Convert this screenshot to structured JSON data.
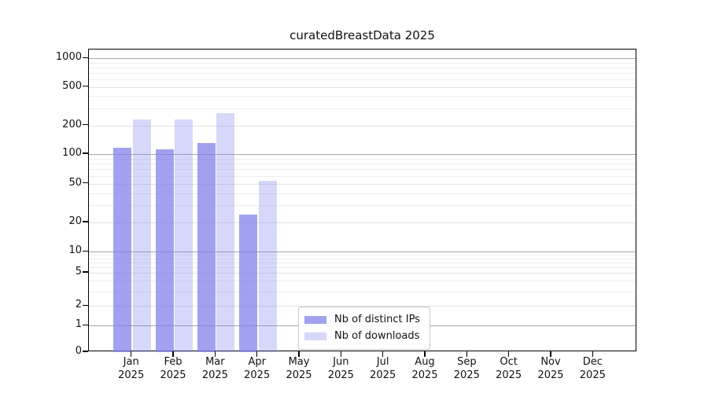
{
  "chart_data": {
    "type": "bar",
    "title": "curatedBreastData 2025",
    "categories": [
      "Jan 2025",
      "Feb 2025",
      "Mar 2025",
      "Apr 2025",
      "May 2025",
      "Jun 2025",
      "Jul 2025",
      "Aug 2025",
      "Sep 2025",
      "Oct 2025",
      "Nov 2025",
      "Dec 2025"
    ],
    "x_tick_lines": {
      "months": [
        "Jan",
        "Feb",
        "Mar",
        "Apr",
        "May",
        "Jun",
        "Jul",
        "Aug",
        "Sep",
        "Oct",
        "Nov",
        "Dec"
      ],
      "year": "2025"
    },
    "series": [
      {
        "name": "Nb of distinct IPs",
        "color": "rgba(130,130,235,0.75)",
        "values": [
          117,
          113,
          131,
          24,
          0,
          0,
          0,
          0,
          0,
          0,
          0,
          0
        ]
      },
      {
        "name": "Nb of downloads",
        "color": "rgba(130,130,235,0.32)",
        "values": [
          230,
          230,
          265,
          53,
          0,
          0,
          0,
          0,
          0,
          0,
          0,
          0
        ]
      }
    ],
    "y_scale": "symlog",
    "y_ticks": [
      1000,
      500,
      200,
      100,
      50,
      20,
      10,
      5,
      2,
      1,
      0
    ],
    "y_tick_labels": [
      "1000",
      "500",
      "200",
      "100",
      "50",
      "20",
      "10",
      "5",
      "2",
      "1",
      "0"
    ],
    "ylim": [
      0,
      1250
    ],
    "grid": true,
    "legend_position": "inside-bottom-left-of-center"
  },
  "colors": {
    "bar_base": "#8282eb",
    "grid_major": "#a6a6a6",
    "grid_minor_labeled": "#e2e2e2",
    "grid_minor": "#eeeeee",
    "axis": "#000000",
    "background": "#ffffff"
  }
}
